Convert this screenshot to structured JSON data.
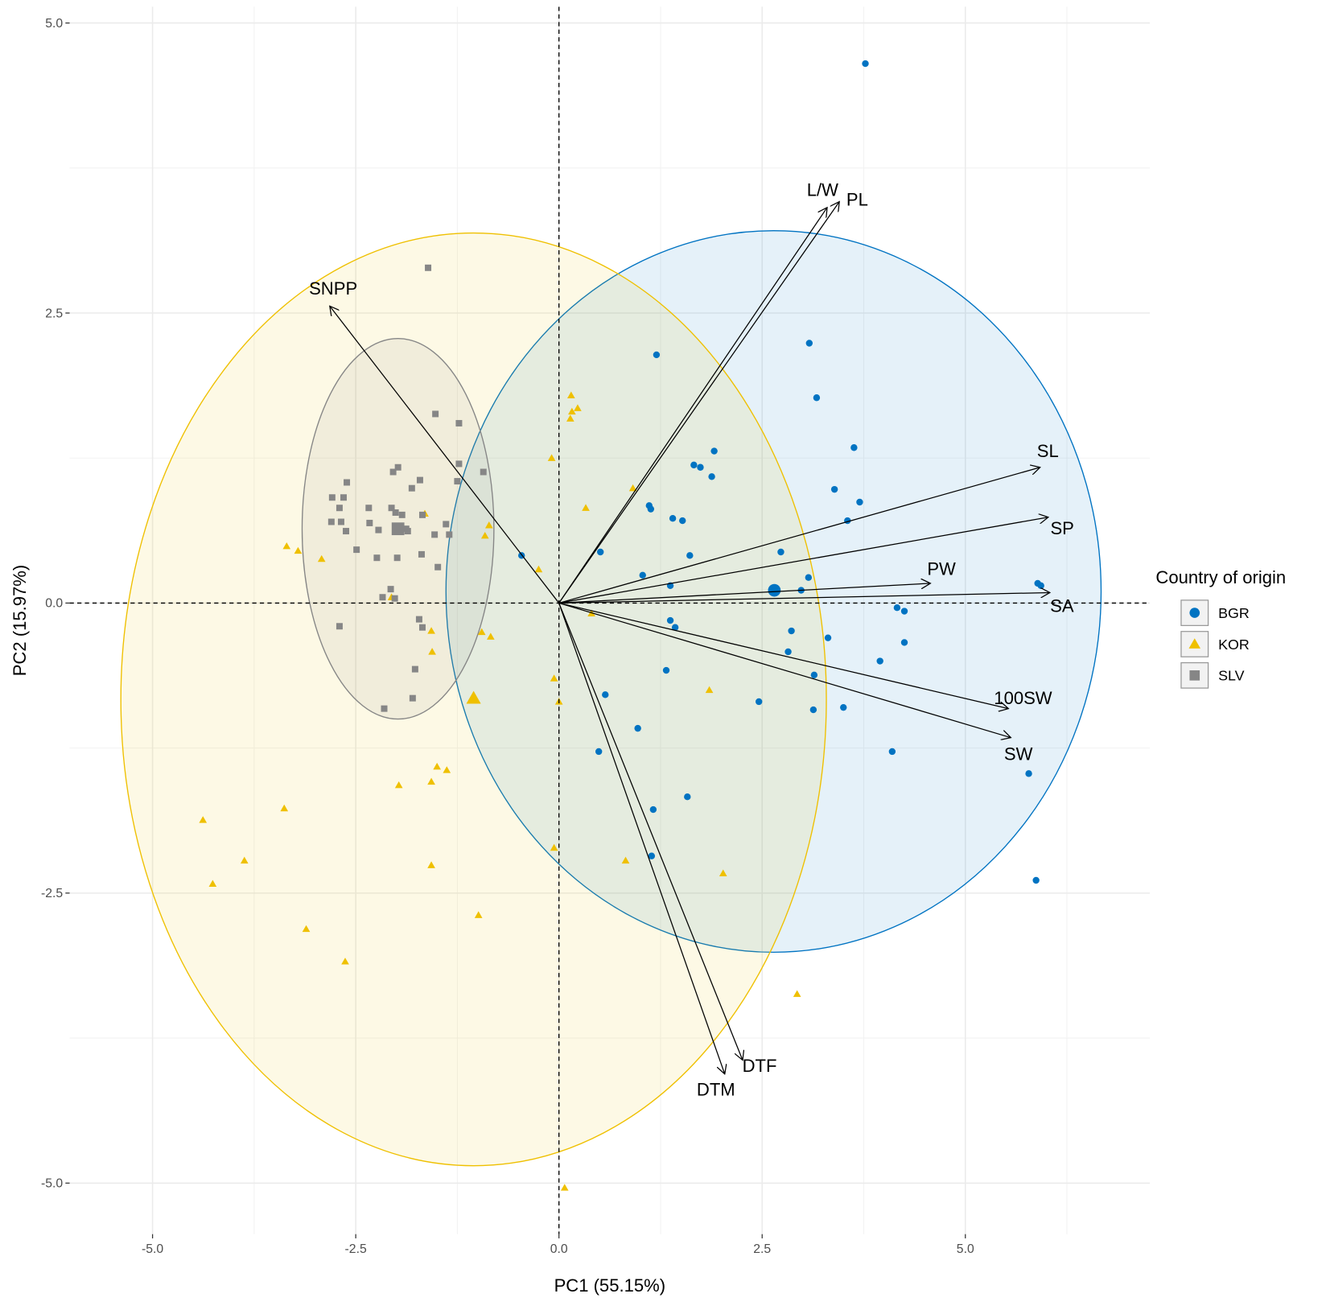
{
  "chart_data": {
    "type": "pca-biplot",
    "x_label": "PC1 (55.15%)",
    "y_label": "PC2 (15.97%)",
    "xlim": [
      -6.02,
      7.27
    ],
    "ylim": [
      -5.44,
      5.14
    ],
    "xticks": [
      {
        "value": -5,
        "label": "-5.0"
      },
      {
        "value": -2.5,
        "label": "-2.5"
      },
      {
        "value": 0,
        "label": "0.0"
      },
      {
        "value": 2.5,
        "label": "2.5"
      },
      {
        "value": 5,
        "label": "5.0"
      }
    ],
    "yticks": [
      {
        "value": -5,
        "label": "-5.0"
      },
      {
        "value": -2.5,
        "label": "-2.5"
      },
      {
        "value": 0,
        "label": "0.0"
      },
      {
        "value": 2.5,
        "label": "2.5"
      },
      {
        "value": 5,
        "label": "5.0"
      }
    ],
    "xminor": [
      -3.75,
      -1.25,
      1.25,
      3.75,
      6.25
    ],
    "yminor": [
      -3.75,
      -1.25,
      1.25,
      3.75
    ],
    "grid": true,
    "hline": 0,
    "vline": 0,
    "legend_title": "Country of origin",
    "legend_position": "right",
    "series": [
      {
        "name": "BGR",
        "color": "#0073C2",
        "shape": "circle",
        "x": [
          3.77,
          3.08,
          3.17,
          1.2,
          3.63,
          1.91,
          1.66,
          1.74,
          1.88,
          3.39,
          3.7,
          1.11,
          1.13,
          1.4,
          1.52,
          3.55,
          1.61,
          2.73,
          0.51,
          -0.46,
          1.03,
          3.07,
          1.37,
          2.98,
          4.16,
          4.25,
          5.89,
          5.93,
          1.37,
          1.43,
          2.86,
          3.31,
          2.82,
          4.25,
          3.95,
          1.32,
          3.14,
          0.57,
          2.46,
          3.5,
          3.13,
          0.97,
          4.1,
          0.49,
          5.78,
          1.58,
          1.16,
          1.14,
          5.87
        ],
        "y": [
          4.65,
          2.24,
          1.77,
          2.14,
          1.34,
          1.31,
          1.19,
          1.17,
          1.09,
          0.98,
          0.87,
          0.84,
          0.81,
          0.73,
          0.71,
          0.71,
          0.41,
          0.44,
          0.44,
          0.41,
          0.24,
          0.22,
          0.15,
          0.11,
          -0.04,
          -0.07,
          0.17,
          0.15,
          -0.15,
          -0.21,
          -0.24,
          -0.3,
          -0.42,
          -0.34,
          -0.5,
          -0.58,
          -0.62,
          -0.79,
          -0.85,
          -0.9,
          -0.92,
          -1.08,
          -1.28,
          -1.28,
          -1.47,
          -1.67,
          -1.78,
          -2.18,
          -2.39
        ],
        "centroid": [
          2.65,
          0.11
        ],
        "ellipse": {
          "cx": 2.64,
          "cy": 0.1,
          "rx": 4.03,
          "ry": 3.11
        }
      },
      {
        "name": "KOR",
        "color": "#EFC000",
        "shape": "triangle",
        "x": [
          0.15,
          0.16,
          0.23,
          0.14,
          -0.09,
          0.91,
          0.33,
          -1.65,
          -0.86,
          -0.91,
          -3.35,
          -3.21,
          -2.92,
          -0.25,
          -2.06,
          0.4,
          -1.57,
          -0.95,
          -0.84,
          -1.56,
          -0.06,
          1.85,
          0.0,
          -1.97,
          -1.5,
          -1.38,
          -1.57,
          -4.38,
          -3.38,
          -3.87,
          -4.26,
          -1.57,
          0.82,
          -0.06,
          2.02,
          -0.99,
          -3.11,
          -2.63,
          2.93,
          0.07
        ],
        "y": [
          1.79,
          1.65,
          1.68,
          1.59,
          1.25,
          0.99,
          0.82,
          0.77,
          0.67,
          0.58,
          0.49,
          0.45,
          0.38,
          0.29,
          0.05,
          -0.09,
          -0.24,
          -0.25,
          -0.29,
          -0.42,
          -0.65,
          -0.75,
          -0.85,
          -1.57,
          -1.41,
          -1.44,
          -1.54,
          -1.87,
          -1.77,
          -2.22,
          -2.42,
          -2.26,
          -2.22,
          -2.11,
          -2.33,
          -2.69,
          -2.81,
          -3.09,
          -3.37,
          -5.04
        ],
        "centroid": [
          -1.05,
          -0.82
        ],
        "ellipse": {
          "cx": -1.05,
          "cy": -0.83,
          "rx": 4.34,
          "ry": 4.02
        }
      },
      {
        "name": "SLV",
        "color": "#868686",
        "shape": "square",
        "x": [
          -1.61,
          -1.52,
          -1.23,
          -1.23,
          -0.93,
          -1.25,
          -1.98,
          -2.04,
          -1.81,
          -2.61,
          -1.71,
          -2.79,
          -2.65,
          -2.7,
          -2.34,
          -2.06,
          -2.01,
          -1.93,
          -1.68,
          -2.33,
          -2.8,
          -2.68,
          -1.88,
          -2.22,
          -1.39,
          -2.62,
          -1.35,
          -1.53,
          -1.86,
          -2.49,
          -2.24,
          -1.99,
          -1.69,
          -1.49,
          -2.07,
          -2.17,
          -2.02,
          -2.7,
          -1.72,
          -1.68,
          -1.77,
          -1.8,
          -2.15
        ],
        "y": [
          2.89,
          1.63,
          1.55,
          1.2,
          1.13,
          1.05,
          1.17,
          1.13,
          0.99,
          1.04,
          1.06,
          0.91,
          0.91,
          0.82,
          0.82,
          0.82,
          0.78,
          0.76,
          0.76,
          0.69,
          0.7,
          0.7,
          0.64,
          0.63,
          0.68,
          0.62,
          0.59,
          0.59,
          0.62,
          0.46,
          0.39,
          0.39,
          0.42,
          0.31,
          0.12,
          0.05,
          0.04,
          -0.2,
          -0.14,
          -0.21,
          -0.57,
          -0.82,
          -0.91
        ],
        "centroid": [
          -1.98,
          0.64
        ],
        "ellipse": {
          "cx": -1.98,
          "cy": 0.64,
          "rx": 1.18,
          "ry": 1.64
        }
      }
    ],
    "loadings": {
      "names": [
        "PL",
        "L/W",
        "SNPP",
        "SL",
        "SP",
        "PW",
        "SA",
        "100SW",
        "SW",
        "DTF",
        "DTM"
      ],
      "x": [
        3.45,
        3.3,
        -2.82,
        5.92,
        6.02,
        4.57,
        6.04,
        5.53,
        5.56,
        2.26,
        2.04
      ],
      "y": [
        3.46,
        3.41,
        2.56,
        1.17,
        0.74,
        0.17,
        0.09,
        -0.91,
        -1.16,
        -3.94,
        -4.06
      ]
    }
  }
}
